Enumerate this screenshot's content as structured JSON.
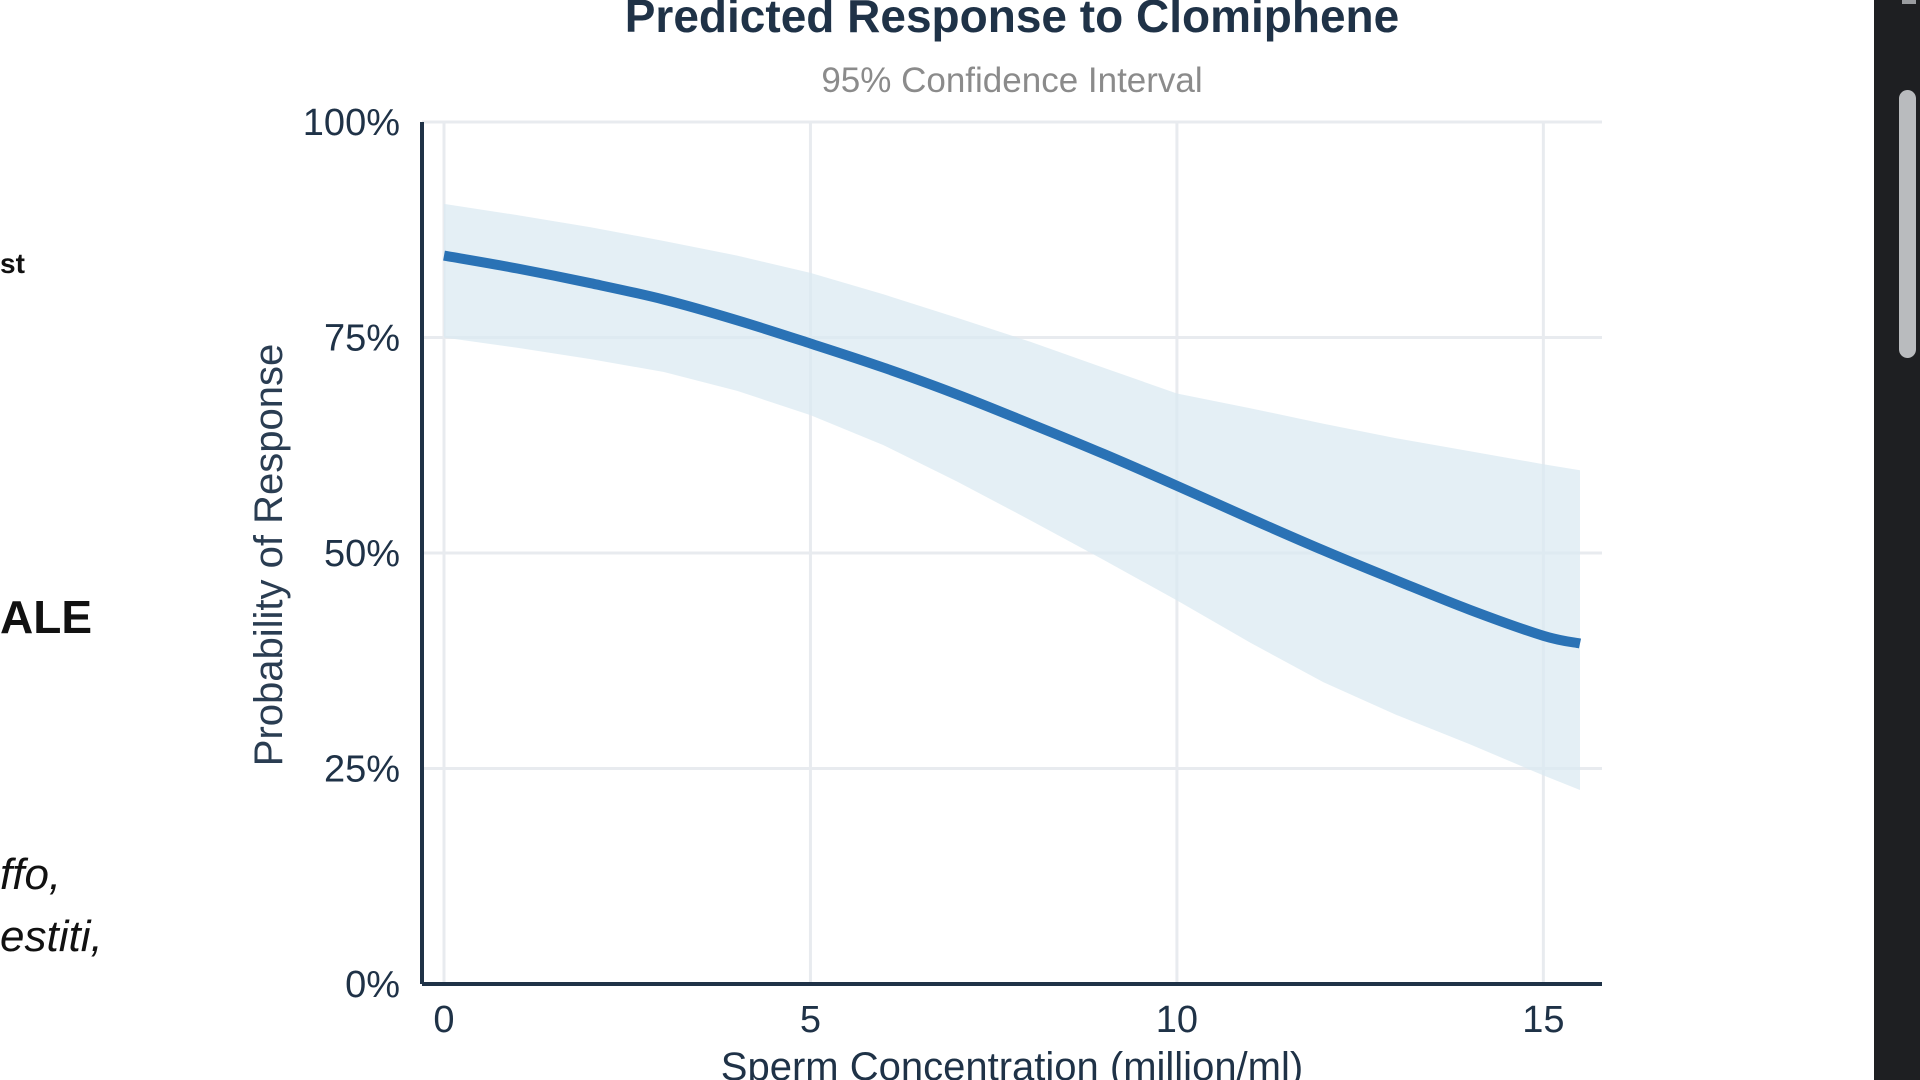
{
  "side_text": {
    "line1": "st",
    "line2": "ALE",
    "line3": "ffo,",
    "line4": "estiti,"
  },
  "chart_data": {
    "type": "line",
    "title": "Predicted Response to Clomiphene",
    "subtitle": "95% Confidence Interval",
    "xlabel": "Sperm Concentration (million/ml)",
    "ylabel": "Probability of Response",
    "xlim": [
      -0.3,
      15.8
    ],
    "ylim": [
      0,
      100
    ],
    "x_ticks": [
      0,
      5,
      10,
      15
    ],
    "y_ticks": [
      0,
      25,
      50,
      75,
      100
    ],
    "y_tick_labels": [
      "0%",
      "25%",
      "50%",
      "75%",
      "100%"
    ],
    "grid": true,
    "series": [
      {
        "color": "#2a72b5",
        "x": [
          0,
          1,
          2,
          3,
          4,
          5,
          6,
          7,
          8,
          9,
          10,
          11,
          12,
          13,
          14,
          15,
          15.5
        ],
        "y": [
          84.5,
          83.0,
          81.3,
          79.4,
          77.0,
          74.3,
          71.5,
          68.4,
          65.0,
          61.5,
          57.8,
          54.0,
          50.3,
          46.8,
          43.4,
          40.4,
          39.5
        ],
        "ci_lower": [
          75.0,
          73.8,
          72.5,
          71.0,
          68.8,
          66.0,
          62.5,
          58.3,
          53.8,
          49.2,
          44.5,
          39.6,
          35.0,
          31.2,
          27.8,
          24.2,
          22.5
        ],
        "ci_upper": [
          90.5,
          89.2,
          87.8,
          86.2,
          84.5,
          82.5,
          80.0,
          77.3,
          74.5,
          71.5,
          68.5,
          66.8,
          65.0,
          63.3,
          61.8,
          60.3,
          59.6
        ]
      }
    ],
    "ci_color": "#dbe9f2"
  }
}
